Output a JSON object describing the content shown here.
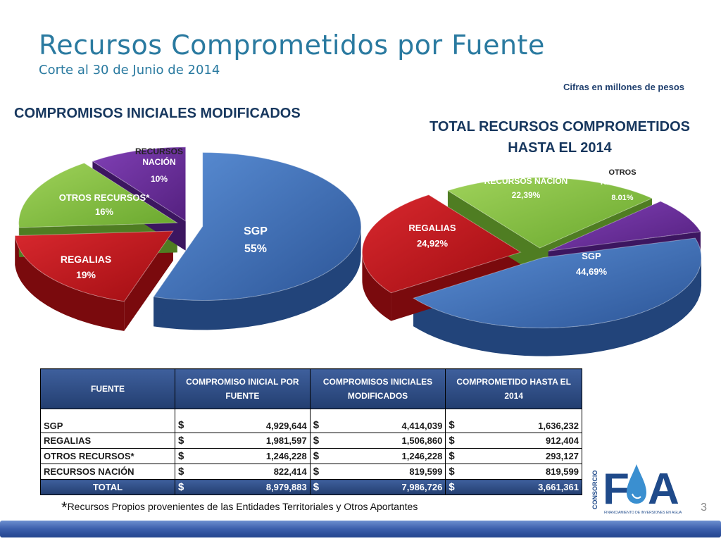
{
  "header": {
    "title": "Recursos Comprometidos por Fuente",
    "subtitle": "Corte al 30 de Junio de 2014",
    "units": "Cifras en millones de pesos"
  },
  "chart_data": [
    {
      "type": "pie",
      "title": "COMPROMISOS INICIALES MODIFICADOS",
      "slices": [
        {
          "name": "SGP",
          "value_label": "55%",
          "value": 55,
          "color": "#3d6fb6"
        },
        {
          "name": "REGALIAS",
          "value_label": "19%",
          "value": 19,
          "color": "#c0151c"
        },
        {
          "name": "OTROS RECURSOS*",
          "value_label": "16%",
          "value": 16,
          "color": "#86c23e"
        },
        {
          "name": "RECURSOS NACIÓN",
          "value_label": "10%",
          "value": 10,
          "color": "#6a2d9a"
        }
      ]
    },
    {
      "type": "pie",
      "title": "TOTAL RECURSOS COMPROMETIDOS HASTA EL 2014",
      "slices": [
        {
          "name": "SGP",
          "value_label": "44,69%",
          "value": 44.69,
          "color": "#3d6fb6"
        },
        {
          "name": "REGALIAS",
          "value_label": "24,92%",
          "value": 24.92,
          "color": "#c0151c"
        },
        {
          "name": "RECURSOS NACIÓN",
          "value_label": "22,39%",
          "value": 22.39,
          "color": "#86c23e"
        },
        {
          "name": "OTROS RECURSOS",
          "value_label": "8.01%",
          "value": 8.01,
          "color": "#6a2d9a"
        }
      ]
    },
    {
      "type": "table",
      "columns": [
        "FUENTE",
        "COMPROMISO INICIAL POR FUENTE",
        "COMPROMISOS INICIALES MODIFICADOS",
        "COMPROMETIDO HASTA EL 2014"
      ],
      "rows": [
        [
          "SGP",
          "4,929,644",
          "4,414,039",
          "1,636,232"
        ],
        [
          "REGALIAS",
          "1,981,597",
          "1,506,860",
          "912,404"
        ],
        [
          "OTROS RECURSOS*",
          "1,246,228",
          "1,246,228",
          "293,127"
        ],
        [
          "RECURSOS NACIÓN",
          "822,414",
          "819,599",
          "819,599"
        ]
      ],
      "total": [
        "TOTAL",
        "8,979,883",
        "7,986,726",
        "3,661,361"
      ],
      "currency": "$"
    }
  ],
  "labels": {
    "left_title": "COMPROMISOS INICIALES MODIFICADOS",
    "right_title_1": "TOTAL RECURSOS COMPROMETIDOS",
    "right_title_2": "HASTA EL 2014"
  },
  "footnote": {
    "star": "*",
    "text": "Recursos Propios provenientes de las Entidades Territoriales y Otros Aportantes"
  },
  "page_number": "3",
  "logo": {
    "vertical_text": "CONSORCIO",
    "letters_1": "F",
    "letters_2": "A",
    "tagline": "FINANCIAMIENTO DE INVERSIONES EN AGUA"
  }
}
